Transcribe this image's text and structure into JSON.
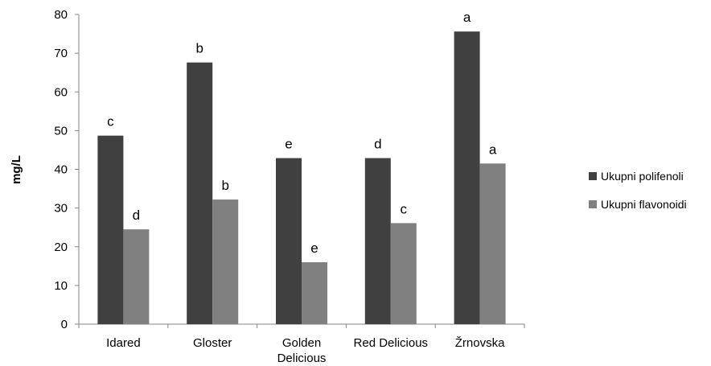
{
  "chart_data": {
    "type": "bar",
    "ylabel": "mg/L",
    "ylim": [
      0,
      80
    ],
    "yticks": [
      0,
      10,
      20,
      30,
      40,
      50,
      60,
      70,
      80
    ],
    "categories": [
      [
        "Idared"
      ],
      [
        "Gloster"
      ],
      [
        "Golden",
        "Delicious"
      ],
      [
        "Red Delicious"
      ],
      [
        "Žrnovska"
      ]
    ],
    "series": [
      {
        "name": "Ukupni polifenoli",
        "color": "#404040",
        "values": [
          48.7,
          67.6,
          42.9,
          42.9,
          75.6
        ],
        "labels": [
          "c",
          "b",
          "e",
          "d",
          "a"
        ]
      },
      {
        "name": "Ukupni flavonoidi",
        "color": "#808080",
        "values": [
          24.5,
          32.2,
          16.0,
          26.1,
          41.5
        ],
        "labels": [
          "d",
          "b",
          "e",
          "c",
          "a"
        ]
      }
    ],
    "legend": "right",
    "grid": false
  }
}
